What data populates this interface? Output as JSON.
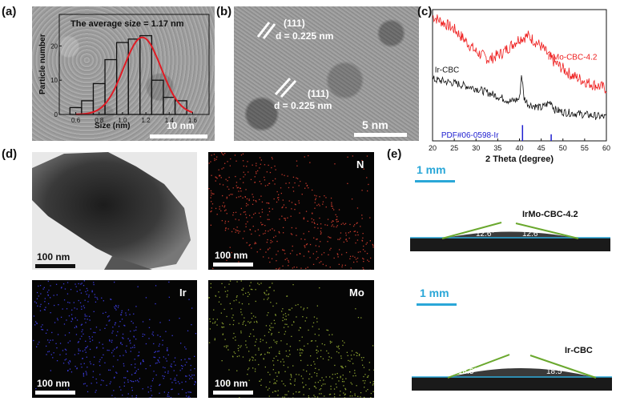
{
  "panels": {
    "a": {
      "label": "(a)",
      "ylabel": "Particle number",
      "xlabel": "Size (nm)",
      "annotation": "The average size = 1.17 nm",
      "xticks": [
        "0.6",
        "0.8",
        "1.0",
        "1.2",
        "1.4",
        "1.6"
      ],
      "yticks": [
        "0",
        "10",
        "20"
      ],
      "scalebar": "10 nm"
    },
    "b": {
      "label": "(b)",
      "plane1": "(111)",
      "d1": "d = 0.225 nm",
      "plane2": "(111)",
      "d2": "d = 0.225 nm",
      "scalebar": "5 nm"
    },
    "c": {
      "label": "(c)"
    },
    "d": {
      "label": "(d)",
      "scalebar": "100 nm",
      "elements": [
        "N",
        "Ir",
        "Mo"
      ]
    },
    "e": {
      "label": "(e)",
      "scalebar": "1 mm",
      "sample1": "IrMo-CBC-4.2",
      "angle1": "12.6°",
      "sample2": "Ir-CBC",
      "angle2": "18.5°"
    }
  },
  "colors": {
    "red_series": "#ee1c1c",
    "black_series": "#111111",
    "pdf_lines": "#2020d0",
    "gauss_fit": "#e01b24",
    "scalebar_blue": "#2aa7d8",
    "tangent_green": "#6aa82e"
  },
  "chart_data": [
    {
      "type": "bar",
      "categories": [
        "0.6",
        "0.7",
        "0.8",
        "0.9",
        "1.0",
        "1.1",
        "1.2",
        "1.3",
        "1.4",
        "1.5",
        "1.6"
      ],
      "values": [
        2,
        4,
        9,
        16,
        21,
        22,
        23,
        10,
        5,
        4,
        0
      ],
      "ylabel": "Particle number",
      "xlabel": "Size (nm)",
      "ylim": [
        0,
        25
      ],
      "xlim": [
        0.5,
        1.7
      ],
      "fit": {
        "type": "gaussian",
        "center": 1.17,
        "peak": 22.5,
        "sigma": 0.16
      }
    },
    {
      "type": "line",
      "xlabel": "2 Theta (degree)",
      "xticks": [
        "20",
        "25",
        "30",
        "35",
        "40",
        "45",
        "50",
        "55",
        "60"
      ],
      "xlim": [
        20,
        60
      ],
      "series": [
        {
          "name": "IrMo-CBC-4.2",
          "x": [
            20,
            25,
            30,
            33,
            36,
            40,
            42,
            45,
            48,
            52,
            56,
            60
          ],
          "y": [
            0.95,
            0.85,
            0.68,
            0.62,
            0.67,
            0.78,
            0.8,
            0.72,
            0.6,
            0.5,
            0.44,
            0.4
          ]
        },
        {
          "name": "Ir-CBC",
          "x": [
            20,
            25,
            30,
            35,
            38,
            40,
            40.5,
            41,
            42,
            45,
            47.3,
            48,
            50,
            55,
            60
          ],
          "y": [
            0.47,
            0.44,
            0.4,
            0.34,
            0.3,
            0.32,
            0.52,
            0.33,
            0.28,
            0.25,
            0.3,
            0.24,
            0.22,
            0.2,
            0.18
          ]
        }
      ],
      "reference": {
        "name": "PDF#06-0598-Ir",
        "peaks": [
          40.7,
          47.3
        ],
        "heights": [
          0.12,
          0.05
        ]
      }
    }
  ]
}
